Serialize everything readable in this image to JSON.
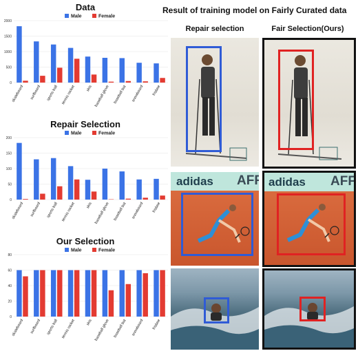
{
  "chart_data": [
    {
      "type": "bar",
      "title": "Data",
      "categories": [
        "skateboard",
        "surfboard",
        "sports ball",
        "tennis racket",
        "skis",
        "baseball glove",
        "baseball bat",
        "snowboard",
        "frisbee"
      ],
      "series": [
        {
          "name": "Male",
          "color": "#3b73e6",
          "values": [
            1820,
            1330,
            1230,
            1120,
            840,
            800,
            790,
            640,
            620
          ]
        },
        {
          "name": "Female",
          "color": "#e33b32",
          "values": [
            60,
            220,
            480,
            770,
            260,
            30,
            50,
            40,
            150
          ]
        }
      ],
      "ylim": [
        0,
        2000
      ],
      "yticks": [
        0,
        500,
        1000,
        1500,
        2000
      ],
      "legend": "top"
    },
    {
      "type": "bar",
      "title": "Repair Selection",
      "categories": [
        "skateboard",
        "surfboard",
        "sports ball",
        "tennis racket",
        "skis",
        "baseball glove",
        "baseball bat",
        "snowboard",
        "frisbee"
      ],
      "series": [
        {
          "name": "Male",
          "color": "#3b73e6",
          "values": [
            183,
            130,
            134,
            108,
            64,
            100,
            91,
            65,
            67
          ]
        },
        {
          "name": "Female",
          "color": "#e33b32",
          "values": [
            2,
            19,
            43,
            65,
            26,
            1,
            3,
            6,
            13
          ]
        }
      ],
      "ylim": [
        0,
        200
      ],
      "yticks": [
        0,
        50,
        100,
        150,
        200
      ],
      "legend": "top"
    },
    {
      "type": "bar",
      "title": "Our Selection",
      "categories": [
        "skateboard",
        "surfboard",
        "sports ball",
        "tennis racket",
        "skis",
        "baseball glove",
        "baseball bat",
        "snowboard",
        "frisbee"
      ],
      "series": [
        {
          "name": "Male",
          "color": "#3b73e6",
          "values": [
            60,
            60,
            60,
            60,
            60,
            60,
            60,
            60,
            60
          ]
        },
        {
          "name": "Female",
          "color": "#e33b32",
          "values": [
            52,
            60,
            60,
            60,
            60,
            34,
            42,
            56,
            60
          ]
        }
      ],
      "ylim": [
        0,
        80
      ],
      "yticks": [
        0,
        20,
        40,
        60,
        80
      ],
      "legend": "top"
    }
  ],
  "right_panel": {
    "title": "Result of training model on Fairly Curated data",
    "col_left": "Repair selection",
    "col_right": "Fair Selection(Ours)",
    "sign_text": "adidas",
    "sign_text_2": "AFF"
  },
  "colors": {
    "male": "#3b73e6",
    "female": "#e33b32",
    "repair_box": "#2f5bd6",
    "ours_box": "#e02222",
    "frame": "#111111"
  }
}
